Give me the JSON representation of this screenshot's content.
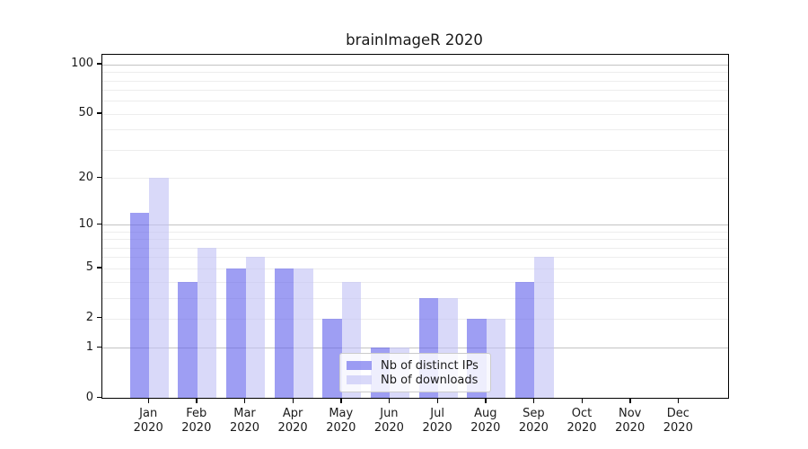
{
  "chart_data": {
    "type": "bar",
    "title": "brainImageR 2020",
    "categories": [
      "Jan 2020",
      "Feb 2020",
      "Mar 2020",
      "Apr 2020",
      "May 2020",
      "Jun 2020",
      "Jul 2020",
      "Aug 2020",
      "Sep 2020",
      "Oct 2020",
      "Nov 2020",
      "Dec 2020"
    ],
    "series": [
      {
        "name": "Nb of distinct IPs",
        "color": "rgba(99,99,236,0.62)",
        "values": [
          12,
          4,
          5,
          5,
          2,
          1,
          3,
          2,
          4,
          0,
          0,
          0
        ]
      },
      {
        "name": "Nb of downloads",
        "color": "rgba(193,193,245,0.62)",
        "values": [
          20,
          7,
          6,
          5,
          4,
          1,
          3,
          2,
          6,
          0,
          0,
          0
        ]
      }
    ],
    "xlabel": "",
    "ylabel": "",
    "y_axis": {
      "scale": "log10(1+y)",
      "tick_values": [
        100,
        50,
        20,
        10,
        5,
        2,
        1,
        0
      ],
      "tick_labels": [
        "100",
        "50",
        "20",
        "10",
        "5",
        "2",
        "1",
        "0"
      ],
      "range": [
        0,
        115
      ],
      "grid": true,
      "major_gridline_values": [
        1,
        10,
        100
      ],
      "minor_gridline_values": [
        2,
        3,
        4,
        5,
        6,
        7,
        8,
        9,
        20,
        30,
        40,
        50,
        60,
        70,
        80,
        90
      ]
    },
    "legend": {
      "position": "lower-center-inside",
      "entries": [
        "Nb of distinct IPs",
        "Nb of downloads"
      ]
    }
  },
  "colors": {
    "bar_ips": "rgba(99,99,236,0.62)",
    "bar_downloads": "rgba(193,193,245,0.62)",
    "major_grid": "#c3c3c3",
    "minor_grid": "#ededed",
    "axis": "#000000",
    "text": "#1a1a1a",
    "legend_border": "#cccccc"
  }
}
